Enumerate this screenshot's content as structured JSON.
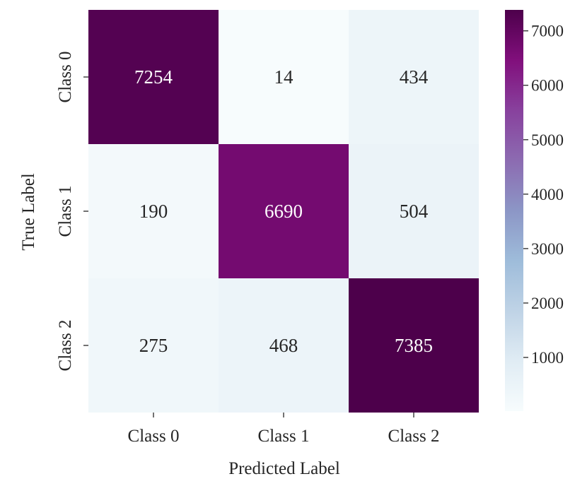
{
  "chart_data": {
    "type": "heatmap",
    "title": "",
    "xlabel": "Predicted Label",
    "ylabel": "True Label",
    "x_categories": [
      "Class 0",
      "Class 1",
      "Class 2"
    ],
    "y_categories": [
      "Class 0",
      "Class 1",
      "Class 2"
    ],
    "values": [
      [
        7254,
        14,
        434
      ],
      [
        190,
        6690,
        504
      ],
      [
        275,
        468,
        7385
      ]
    ],
    "colormap": "BuPu",
    "colorbar": {
      "min": 14,
      "max": 7385,
      "ticks": [
        1000,
        2000,
        3000,
        4000,
        5000,
        6000,
        7000
      ],
      "tick_labels": [
        "1000",
        "2000",
        "3000",
        "4000",
        "5000",
        "6000",
        "7000"
      ]
    },
    "grid": false,
    "legend": "colorbar-right"
  }
}
